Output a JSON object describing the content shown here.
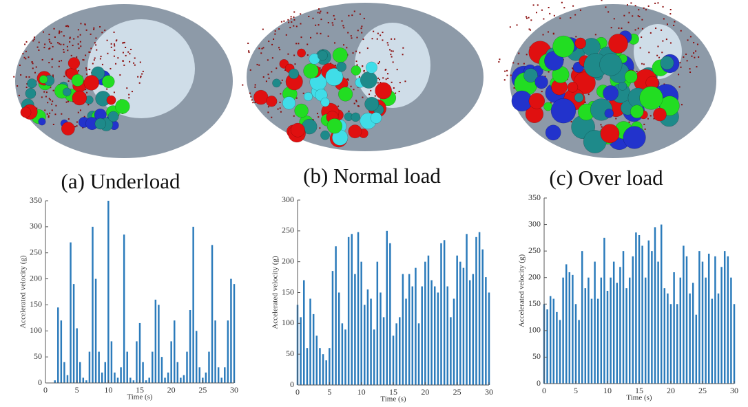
{
  "chart_data": [
    {
      "type": "bar",
      "title": "(a) Underload",
      "x_label": "Time (s)",
      "y_label": "Accelerated velocity (g)",
      "color": "#2b7bbb",
      "x": [
        0,
        0.5,
        1,
        1.5,
        2,
        2.5,
        3,
        3.5,
        4,
        4.5,
        5,
        5.5,
        6,
        6.5,
        7,
        7.5,
        8,
        8.5,
        9,
        9.5,
        10,
        10.5,
        11,
        11.5,
        12,
        12.5,
        13,
        13.5,
        14,
        14.5,
        15,
        15.5,
        16,
        16.5,
        17,
        17.5,
        18,
        18.5,
        19,
        19.5,
        20,
        20.5,
        21,
        21.5,
        22,
        22.5,
        23,
        23.5,
        24,
        24.5,
        25,
        25.5,
        26,
        26.5,
        27,
        27.5,
        28,
        28.5,
        29,
        29.5,
        30
      ],
      "values": [
        0,
        0,
        0,
        5,
        145,
        120,
        40,
        15,
        270,
        190,
        105,
        40,
        10,
        5,
        60,
        300,
        200,
        60,
        20,
        40,
        350,
        80,
        20,
        10,
        30,
        285,
        60,
        10,
        5,
        80,
        115,
        40,
        5,
        10,
        60,
        160,
        150,
        50,
        10,
        20,
        80,
        120,
        40,
        10,
        15,
        60,
        140,
        300,
        100,
        30,
        10,
        20,
        60,
        265,
        120,
        30,
        10,
        30,
        120,
        200,
        190
      ],
      "xlim": [
        0,
        30
      ],
      "xticks": [
        0,
        5,
        10,
        15,
        20,
        25,
        30
      ],
      "ylim": [
        0,
        350
      ],
      "yticks": [
        0,
        50,
        100,
        150,
        200,
        250,
        300,
        350
      ]
    },
    {
      "type": "bar",
      "title": "(b) Normal load",
      "x_label": "Time (s)",
      "y_label": "Accelerated velocity (g)",
      "color": "#2b7bbb",
      "x": [
        0,
        0.5,
        1,
        1.5,
        2,
        2.5,
        3,
        3.5,
        4,
        4.5,
        5,
        5.5,
        6,
        6.5,
        7,
        7.5,
        8,
        8.5,
        9,
        9.5,
        10,
        10.5,
        11,
        11.5,
        12,
        12.5,
        13,
        13.5,
        14,
        14.5,
        15,
        15.5,
        16,
        16.5,
        17,
        17.5,
        18,
        18.5,
        19,
        19.5,
        20,
        20.5,
        21,
        21.5,
        22,
        22.5,
        23,
        23.5,
        24,
        24.5,
        25,
        25.5,
        26,
        26.5,
        27,
        27.5,
        28,
        28.5,
        29,
        29.5,
        30
      ],
      "values": [
        130,
        110,
        170,
        60,
        140,
        115,
        80,
        60,
        50,
        40,
        60,
        185,
        225,
        150,
        100,
        90,
        240,
        245,
        180,
        248,
        200,
        130,
        155,
        140,
        90,
        200,
        150,
        110,
        250,
        230,
        80,
        100,
        110,
        180,
        140,
        180,
        160,
        190,
        100,
        160,
        200,
        210,
        170,
        160,
        150,
        230,
        235,
        160,
        110,
        140,
        210,
        200,
        190,
        245,
        170,
        180,
        240,
        248,
        220,
        175,
        150
      ],
      "xlim": [
        0,
        30
      ],
      "xticks": [
        0,
        5,
        10,
        15,
        20,
        25,
        30
      ],
      "ylim": [
        0,
        300
      ],
      "yticks": [
        0,
        50,
        100,
        150,
        200,
        250,
        300
      ]
    },
    {
      "type": "bar",
      "title": "(c) Over load",
      "x_label": "Time (s)",
      "y_label": "Accelerated velocity (g)",
      "color": "#2b7bbb",
      "x": [
        0,
        0.5,
        1,
        1.5,
        2,
        2.5,
        3,
        3.5,
        4,
        4.5,
        5,
        5.5,
        6,
        6.5,
        7,
        7.5,
        8,
        8.5,
        9,
        9.5,
        10,
        10.5,
        11,
        11.5,
        12,
        12.5,
        13,
        13.5,
        14,
        14.5,
        15,
        15.5,
        16,
        16.5,
        17,
        17.5,
        18,
        18.5,
        19,
        19.5,
        20,
        20.5,
        21,
        21.5,
        22,
        22.5,
        23,
        23.5,
        24,
        24.5,
        25,
        25.5,
        26,
        26.5,
        27,
        27.5,
        28,
        28.5,
        29,
        29.5,
        30
      ],
      "values": [
        150,
        140,
        165,
        160,
        135,
        120,
        200,
        225,
        210,
        205,
        150,
        120,
        250,
        180,
        200,
        160,
        230,
        160,
        200,
        275,
        175,
        200,
        230,
        190,
        220,
        250,
        180,
        200,
        240,
        285,
        280,
        260,
        200,
        270,
        250,
        295,
        230,
        300,
        180,
        170,
        150,
        210,
        150,
        200,
        260,
        240,
        170,
        190,
        130,
        250,
        230,
        200,
        245,
        160,
        240,
        170,
        220,
        250,
        240,
        200,
        150
      ],
      "xlim": [
        0,
        30
      ],
      "xticks": [
        0,
        5,
        10,
        15,
        20,
        25,
        30
      ],
      "ylim": [
        0,
        350
      ],
      "yticks": [
        0,
        50,
        100,
        150,
        200,
        250,
        300,
        350
      ]
    }
  ]
}
